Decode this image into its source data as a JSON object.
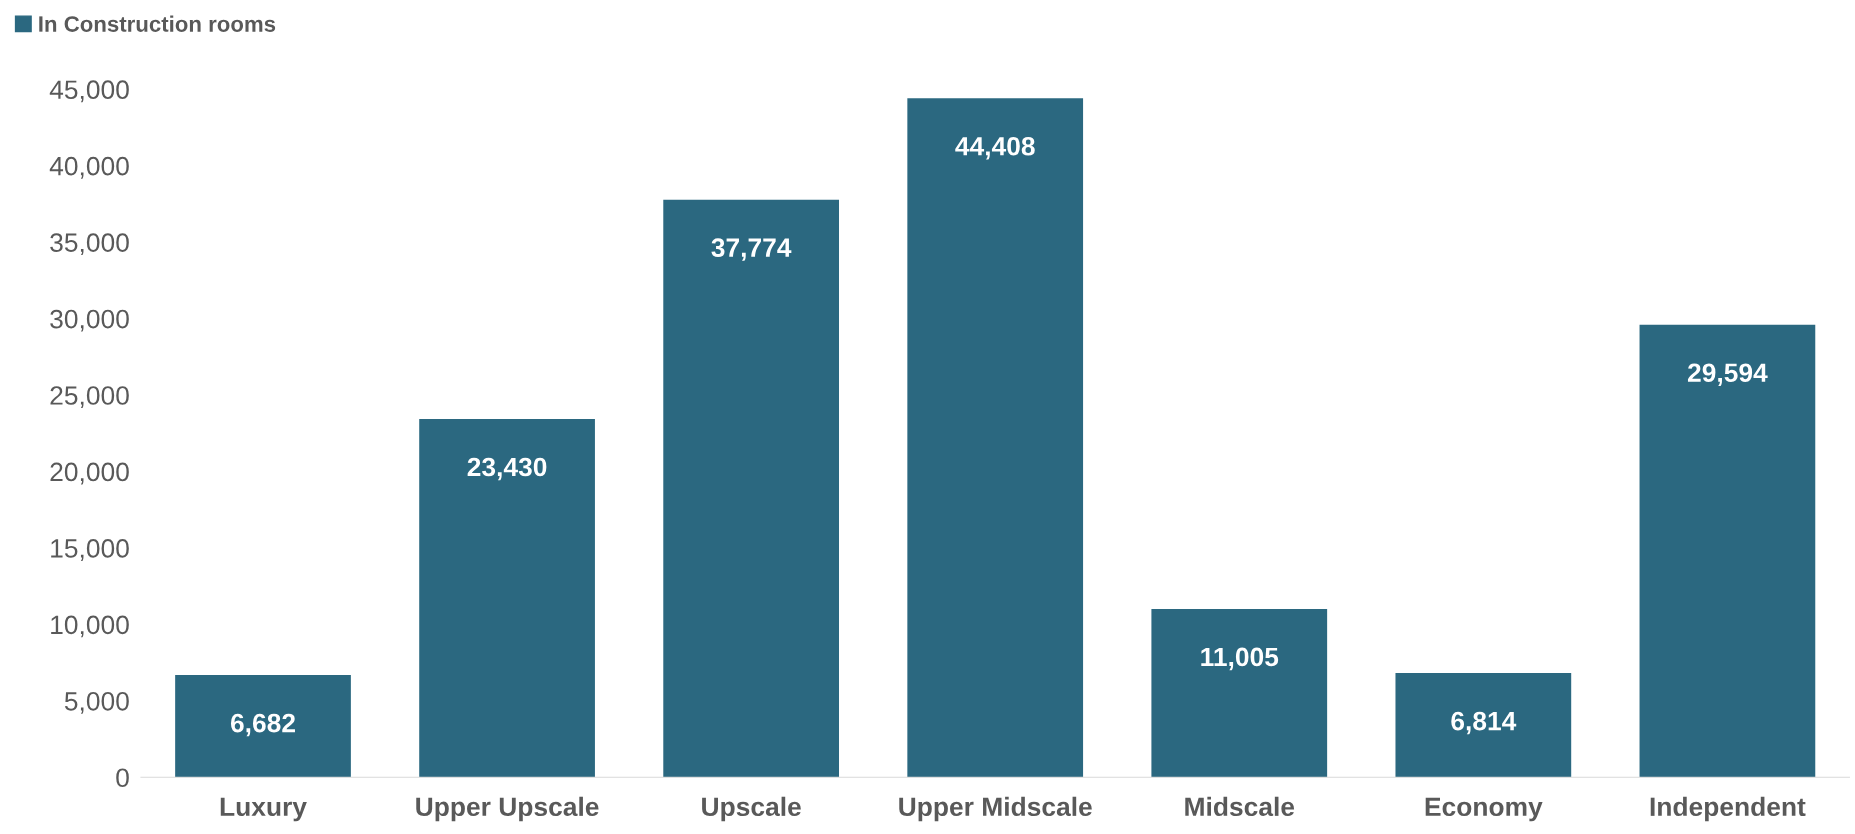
{
  "chart_data": {
    "type": "bar",
    "categories": [
      "Luxury",
      "Upper Upscale",
      "Upscale",
      "Upper Midscale",
      "Midscale",
      "Economy",
      "Independent"
    ],
    "series": [
      {
        "name": "In Construction rooms",
        "color": "#2b6880",
        "values": [
          6682,
          23430,
          37774,
          44408,
          11005,
          6814,
          29594
        ],
        "value_labels": [
          "6,682",
          "23,430",
          "37,774",
          "44,408",
          "11,005",
          "6,814",
          "29,594"
        ]
      }
    ],
    "ylim": [
      0,
      45000
    ],
    "yticks": [
      {
        "value": 0,
        "label": "0"
      },
      {
        "value": 5000,
        "label": "5,000"
      },
      {
        "value": 10000,
        "label": "10,000"
      },
      {
        "value": 15000,
        "label": "15,000"
      },
      {
        "value": 20000,
        "label": "20,000"
      },
      {
        "value": 25000,
        "label": "25,000"
      },
      {
        "value": 30000,
        "label": "30,000"
      },
      {
        "value": 35000,
        "label": "35,000"
      },
      {
        "value": 40000,
        "label": "40,000"
      },
      {
        "value": 45000,
        "label": "45,000"
      }
    ],
    "grid": false,
    "legend": "top left"
  }
}
